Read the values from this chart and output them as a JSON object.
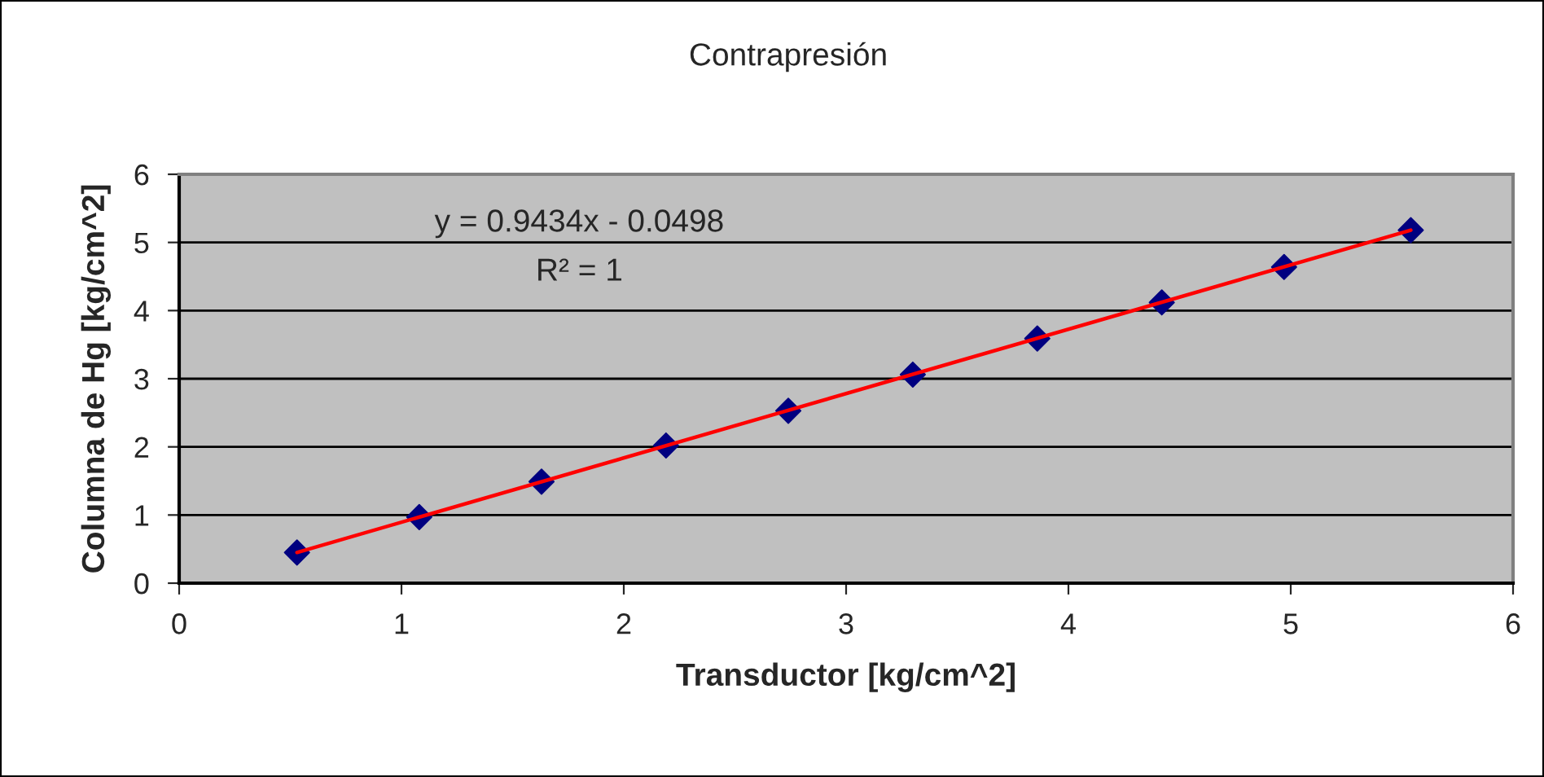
{
  "chart_data": {
    "type": "scatter",
    "title": "Contrapresión",
    "xlabel": "Transductor [kg/cm^2]",
    "ylabel": "Columna de Hg [kg/cm^2]",
    "series": [
      {
        "color": "#000080",
        "marker": "diamond",
        "x": [
          0.53,
          1.08,
          1.63,
          2.19,
          2.74,
          3.3,
          3.86,
          4.42,
          4.97,
          5.54
        ],
        "values": [
          0.45,
          0.97,
          1.49,
          2.02,
          2.53,
          3.06,
          3.59,
          4.12,
          4.64,
          5.18
        ]
      },
      {
        "type": "line",
        "color": "#ff0000",
        "marker": "none",
        "line_style": "solid",
        "x": [
          0.53,
          5.54
        ],
        "values": [
          0.45,
          5.18
        ]
      }
    ],
    "annotations": [
      "y = 0.9434x - 0.0498",
      "R² = 1"
    ],
    "xlim": [
      0,
      6
    ],
    "xticks": [
      0,
      1,
      2,
      3,
      4,
      5,
      6
    ],
    "ylim": [
      0,
      6
    ],
    "yticks": [
      0,
      1,
      2,
      3,
      4,
      5,
      6
    ],
    "grid": "y",
    "legend": false
  }
}
